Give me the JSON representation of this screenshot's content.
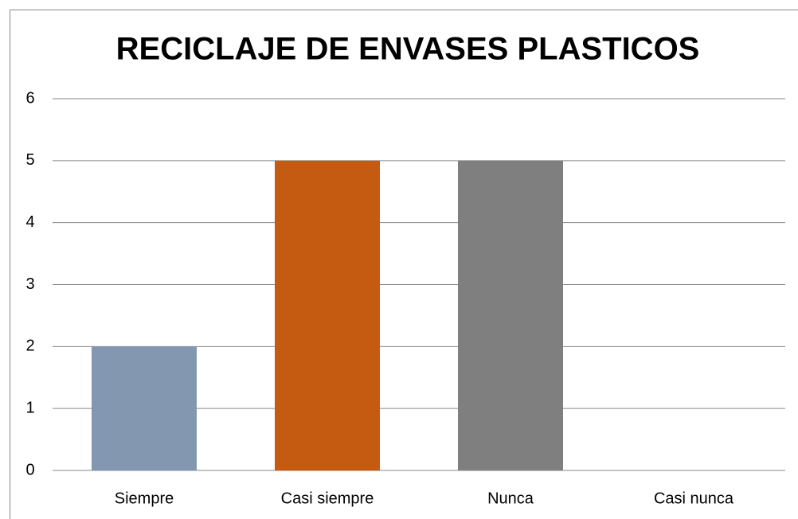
{
  "chart_data": {
    "type": "bar",
    "title": "RECICLAJE DE ENVASES PLASTICOS",
    "categories": [
      "Siempre",
      "Casi siempre",
      "Nunca",
      "Casi nunca"
    ],
    "values": [
      2,
      5,
      5,
      0
    ],
    "colors": [
      "#8497b0",
      "#c55a11",
      "#7f7f7f",
      "#ffc000"
    ],
    "ylim": [
      0,
      6
    ],
    "yticks": [
      0,
      1,
      2,
      3,
      4,
      5,
      6
    ],
    "grid": true
  }
}
